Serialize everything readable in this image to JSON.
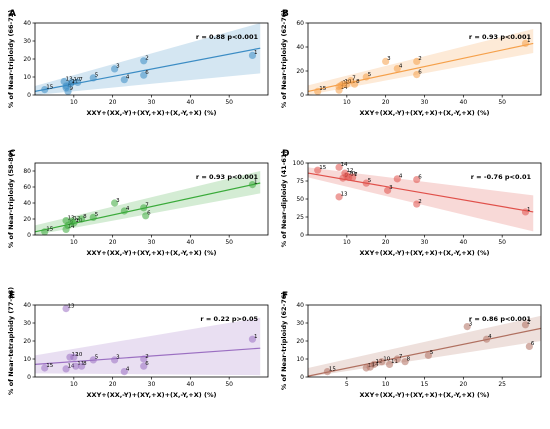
{
  "chart_data": [
    {
      "type": "scatter",
      "panel": "A",
      "ylabel": "% of Near-triploidy (66-72)",
      "xlabel": "XXY+(XX,-Y)+(XY,+X)+(X,-Y,+X) (%)",
      "annotation": "r = 0.88 p<0.001",
      "color": "#3b8cc4",
      "xlim": [
        0,
        60
      ],
      "ylim": [
        0,
        40
      ],
      "xticks": [
        10,
        20,
        30,
        40,
        50
      ],
      "yticks": [
        0,
        10,
        20,
        30,
        40
      ],
      "fit": {
        "x0": 0,
        "y0": 2,
        "x1": 58,
        "y1": 26
      },
      "band": {
        "lo0": 0,
        "hi0": 5,
        "lo1": 12,
        "hi1": 40
      },
      "points": [
        {
          "label": "15",
          "x": 2.5,
          "y": 3
        },
        {
          "label": "13",
          "x": 7.5,
          "y": 7.5
        },
        {
          "label": "8",
          "x": 8,
          "y": 4
        },
        {
          "label": "9",
          "x": 8.5,
          "y": 2
        },
        {
          "label": "14",
          "x": 8,
          "y": 5
        },
        {
          "label": "10",
          "x": 9.5,
          "y": 7
        },
        {
          "label": "11",
          "x": 9,
          "y": 6
        },
        {
          "label": "7",
          "x": 11,
          "y": 7
        },
        {
          "label": "5",
          "x": 15,
          "y": 9.5
        },
        {
          "label": "3",
          "x": 20.5,
          "y": 14.5
        },
        {
          "label": "4",
          "x": 23,
          "y": 8.5
        },
        {
          "label": "2",
          "x": 28,
          "y": 19
        },
        {
          "label": "6",
          "x": 28,
          "y": 11
        },
        {
          "label": "1",
          "x": 56,
          "y": 22
        }
      ]
    },
    {
      "type": "scatter",
      "panel": "B",
      "ylabel": "% of Near-triploidy (62-76)",
      "xlabel": "XXY+(XX,-Y)+(XY,+X)+(X,-Y,+X) (%)",
      "annotation": "r = 0.93 p<0.001",
      "color": "#f5a04a",
      "xlim": [
        0,
        60
      ],
      "ylim": [
        0,
        60
      ],
      "xticks": [
        10,
        20,
        30,
        40,
        50
      ],
      "yticks": [
        0,
        20,
        40,
        60
      ],
      "fit": {
        "x0": 0,
        "y0": 3,
        "x1": 58,
        "y1": 43
      },
      "band": {
        "lo0": 0,
        "hi0": 8,
        "lo1": 35,
        "hi1": 55
      },
      "points": [
        {
          "label": "15",
          "x": 2.5,
          "y": 3
        },
        {
          "label": "13",
          "x": 8,
          "y": 7
        },
        {
          "label": "14",
          "x": 8,
          "y": 4
        },
        {
          "label": "12",
          "x": 8.5,
          "y": 8
        },
        {
          "label": "10",
          "x": 9,
          "y": 9
        },
        {
          "label": "11",
          "x": 10,
          "y": 9
        },
        {
          "label": "7",
          "x": 11,
          "y": 12
        },
        {
          "label": "8",
          "x": 12,
          "y": 9
        },
        {
          "label": "5",
          "x": 15,
          "y": 15
        },
        {
          "label": "3",
          "x": 20,
          "y": 28
        },
        {
          "label": "4",
          "x": 23,
          "y": 22
        },
        {
          "label": "2",
          "x": 28,
          "y": 28
        },
        {
          "label": "6",
          "x": 28,
          "y": 17
        },
        {
          "label": "1",
          "x": 56,
          "y": 43
        }
      ]
    },
    {
      "type": "scatter",
      "panel": "C",
      "ylabel": "% of Near-triploidy (58-80)",
      "xlabel": "XXY+(XX,-Y)+(XY,+X)+(X,-Y,+X) (%)",
      "annotation": "r = 0.93 p<0.001",
      "color": "#3aaa3a",
      "xlim": [
        0,
        60
      ],
      "ylim": [
        0,
        90
      ],
      "xticks": [
        10,
        20,
        30,
        40,
        50
      ],
      "yticks": [
        0,
        20,
        40,
        60,
        80
      ],
      "fit": {
        "x0": 0,
        "y0": 4,
        "x1": 58,
        "y1": 65
      },
      "band": {
        "lo0": 0,
        "hi0": 12,
        "lo1": 52,
        "hi1": 80
      },
      "points": [
        {
          "label": "15",
          "x": 2.5,
          "y": 4
        },
        {
          "label": "13",
          "x": 8,
          "y": 18
        },
        {
          "label": "14",
          "x": 8,
          "y": 7
        },
        {
          "label": "9",
          "x": 8.5,
          "y": 12
        },
        {
          "label": "12",
          "x": 9.5,
          "y": 17
        },
        {
          "label": "10",
          "x": 10,
          "y": 15
        },
        {
          "label": "8",
          "x": 12,
          "y": 20
        },
        {
          "label": "5",
          "x": 15,
          "y": 22
        },
        {
          "label": "3",
          "x": 20.5,
          "y": 40
        },
        {
          "label": "4",
          "x": 23,
          "y": 30
        },
        {
          "label": "7",
          "x": 28,
          "y": 34
        },
        {
          "label": "6",
          "x": 28.5,
          "y": 24
        },
        {
          "label": "1",
          "x": 56,
          "y": 63
        }
      ]
    },
    {
      "type": "scatter",
      "panel": "D",
      "ylabel": "% of Near-diploidy (41-61)",
      "xlabel": "XXY+(XX,-Y)+(XY,+X)+(X,-Y,+X) (%)",
      "annotation": "r = -0.76 p<0.01",
      "color": "#e0504a",
      "xlim": [
        0,
        60
      ],
      "ylim": [
        0,
        100
      ],
      "xticks": [
        10,
        20,
        30,
        40,
        50
      ],
      "yticks": [
        0,
        25,
        50,
        75,
        100
      ],
      "fit": {
        "x0": 0,
        "y0": 86,
        "x1": 58,
        "y1": 32
      },
      "band": {
        "lo0": 80,
        "hi0": 94,
        "lo1": 5,
        "hi1": 55
      },
      "points": [
        {
          "label": "15",
          "x": 2.5,
          "y": 90
        },
        {
          "label": "14",
          "x": 8,
          "y": 94
        },
        {
          "label": "13",
          "x": 8,
          "y": 53
        },
        {
          "label": "9",
          "x": 9,
          "y": 79
        },
        {
          "label": "12",
          "x": 9.5,
          "y": 86
        },
        {
          "label": "10",
          "x": 10,
          "y": 82
        },
        {
          "label": "11",
          "x": 10.5,
          "y": 80
        },
        {
          "label": "7",
          "x": 11.5,
          "y": 80
        },
        {
          "label": "5",
          "x": 15,
          "y": 72
        },
        {
          "label": "3",
          "x": 20.5,
          "y": 62
        },
        {
          "label": "4",
          "x": 23,
          "y": 78
        },
        {
          "label": "6",
          "x": 28,
          "y": 77
        },
        {
          "label": "2",
          "x": 28,
          "y": 43
        },
        {
          "label": "1",
          "x": 56,
          "y": 32
        }
      ]
    },
    {
      "type": "scatter",
      "panel": "E",
      "ylabel": "% of Near-tetraploidy (77-98)",
      "xlabel": "XXY+(XX,-Y)+(XY,+X)+(X,-Y,+X) (%)",
      "annotation": "r = 0.22 p>0.05",
      "color": "#9b6fc2",
      "xlim": [
        0,
        60
      ],
      "ylim": [
        0,
        40
      ],
      "xticks": [
        10,
        20,
        30,
        40,
        50
      ],
      "yticks": [
        0,
        10,
        20,
        30,
        40
      ],
      "fit": {
        "x0": 0,
        "y0": 7,
        "x1": 58,
        "y1": 16
      },
      "band": {
        "lo0": 2,
        "hi0": 12,
        "lo1": 1,
        "hi1": 33
      },
      "points": [
        {
          "label": "15",
          "x": 2.5,
          "y": 5
        },
        {
          "label": "13",
          "x": 8,
          "y": 38
        },
        {
          "label": "14",
          "x": 8,
          "y": 4.5
        },
        {
          "label": "12",
          "x": 9,
          "y": 11
        },
        {
          "label": "10",
          "x": 10,
          "y": 11
        },
        {
          "label": "11",
          "x": 10.5,
          "y": 6
        },
        {
          "label": "8",
          "x": 12,
          "y": 6
        },
        {
          "label": "5",
          "x": 15,
          "y": 9.5
        },
        {
          "label": "3",
          "x": 20.5,
          "y": 9.5
        },
        {
          "label": "4",
          "x": 23,
          "y": 3
        },
        {
          "label": "2",
          "x": 28,
          "y": 10
        },
        {
          "label": "6",
          "x": 28,
          "y": 6
        },
        {
          "label": "1",
          "x": 56,
          "y": 21
        }
      ]
    },
    {
      "type": "scatter",
      "panel": "F",
      "ylabel": "% of Near-triploidy (62-76)",
      "xlabel": "XXY+(XX,-Y)+(XY,+X)+(X,-Y,+X) (%)",
      "annotation": "r = 0.86 p<0.001",
      "color": "#b07060",
      "xlim": [
        0,
        30
      ],
      "ylim": [
        0,
        40
      ],
      "xticks": [
        5,
        10,
        15,
        20,
        25
      ],
      "yticks": [
        0,
        10,
        20,
        30,
        40
      ],
      "fit": {
        "x0": 0,
        "y0": 0.5,
        "x1": 30,
        "y1": 27
      },
      "band": {
        "lo0": 0,
        "hi0": 5,
        "lo1": 20,
        "hi1": 34
      },
      "points": [
        {
          "label": "15",
          "x": 2.5,
          "y": 3
        },
        {
          "label": "13",
          "x": 7.5,
          "y": 5
        },
        {
          "label": "14",
          "x": 8,
          "y": 5.5
        },
        {
          "label": "12",
          "x": 8.5,
          "y": 7
        },
        {
          "label": "10",
          "x": 9.5,
          "y": 8.5
        },
        {
          "label": "11",
          "x": 10.5,
          "y": 7
        },
        {
          "label": "7",
          "x": 11.5,
          "y": 10
        },
        {
          "label": "8",
          "x": 12.5,
          "y": 8.5
        },
        {
          "label": "5",
          "x": 15.5,
          "y": 12
        },
        {
          "label": "3",
          "x": 20.5,
          "y": 28
        },
        {
          "label": "4",
          "x": 23,
          "y": 21
        },
        {
          "label": "2",
          "x": 28,
          "y": 29
        },
        {
          "label": "6",
          "x": 28.5,
          "y": 17
        }
      ]
    }
  ]
}
